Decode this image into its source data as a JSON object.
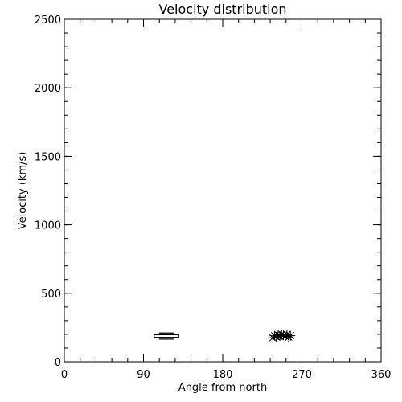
{
  "chart_data": {
    "type": "scatter",
    "title": "Velocity distribution",
    "xlabel": "Angle from north",
    "ylabel": "Velocity (km/s)",
    "xlim": [
      0,
      360
    ],
    "ylim": [
      0,
      2500
    ],
    "xticks": [
      0,
      90,
      180,
      270,
      360
    ],
    "yticks": [
      0,
      500,
      1000,
      1500,
      2000,
      2500
    ],
    "x_minor_step": 18,
    "y_minor_step": 100,
    "grid": false,
    "legend": "none",
    "color": "#000000",
    "series": [
      {
        "marker": "asterisk",
        "points": [
          {
            "x": 237,
            "y": 175
          },
          {
            "x": 239,
            "y": 190
          },
          {
            "x": 241,
            "y": 182
          },
          {
            "x": 243,
            "y": 195
          },
          {
            "x": 245,
            "y": 188
          },
          {
            "x": 247,
            "y": 200
          },
          {
            "x": 249,
            "y": 192
          },
          {
            "x": 251,
            "y": 185
          },
          {
            "x": 253,
            "y": 198
          },
          {
            "x": 255,
            "y": 180
          },
          {
            "x": 257,
            "y": 190
          }
        ]
      }
    ],
    "boxes": [
      {
        "x": 116,
        "low": 165,
        "q1": 178,
        "q3": 197,
        "high": 210,
        "x_min": 102,
        "x_max": 130
      }
    ]
  }
}
